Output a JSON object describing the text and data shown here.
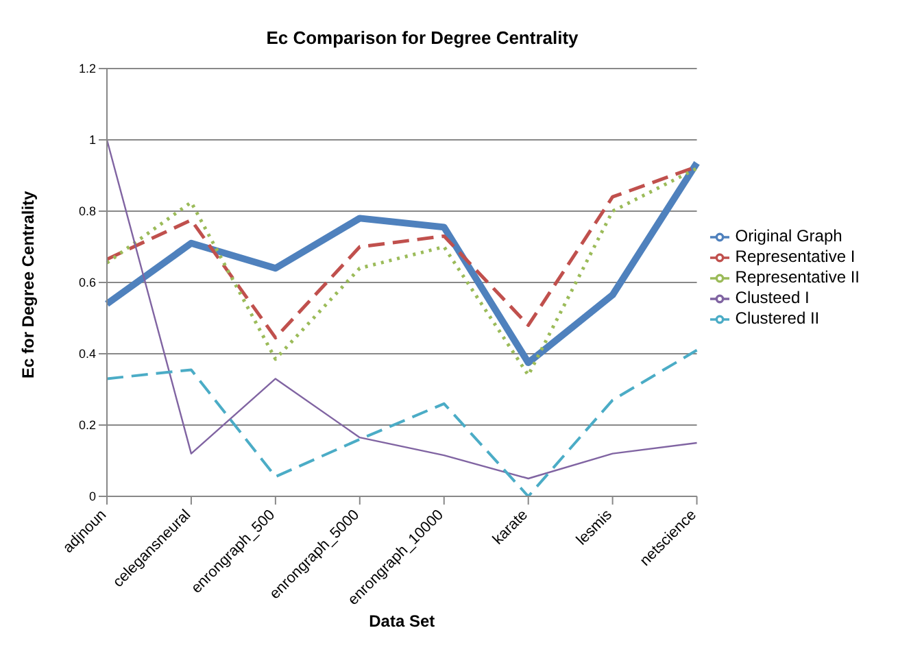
{
  "chart_data": {
    "type": "line",
    "title": "Ec Comparison  for Degree Centrality",
    "xlabel": "Data Set",
    "ylabel": "Ec for Degree Centrality",
    "categories": [
      "adjnoun",
      "celegansneural",
      "enrongraph_500",
      "enrongraph_5000",
      "enrongraph_10000",
      "karate",
      "lesmis",
      "netscience"
    ],
    "series": [
      {
        "name": "Original Graph",
        "color": "#4f81bd",
        "line_style": "solid",
        "values": [
          0.54,
          0.71,
          0.64,
          0.78,
          0.755,
          0.375,
          0.565,
          0.935
        ]
      },
      {
        "name": "Representative I",
        "color": "#c0504d",
        "line_style": "dashed",
        "values": [
          0.665,
          0.775,
          0.445,
          0.7,
          0.73,
          0.48,
          0.84,
          0.925
        ]
      },
      {
        "name": "Representative II",
        "color": "#9bbb59",
        "line_style": "dotted",
        "values": [
          0.655,
          0.825,
          0.385,
          0.64,
          0.7,
          0.34,
          0.8,
          0.92
        ]
      },
      {
        "name": "Clusteed I",
        "color": "#8064a2",
        "line_style": "solid",
        "values": [
          1.0,
          0.12,
          0.33,
          0.165,
          0.115,
          0.05,
          0.12,
          0.15
        ]
      },
      {
        "name": "Clustered II",
        "color": "#4bacc6",
        "line_style": "dashed",
        "values": [
          0.33,
          0.355,
          0.055,
          0.16,
          0.26,
          0.0,
          0.27,
          0.41
        ]
      }
    ],
    "ylim": [
      0,
      1.2
    ],
    "yticks": [
      0,
      0.2,
      0.4,
      0.6,
      0.8,
      1,
      1.2
    ],
    "grid": "y",
    "legend": "right",
    "marker": "none"
  }
}
